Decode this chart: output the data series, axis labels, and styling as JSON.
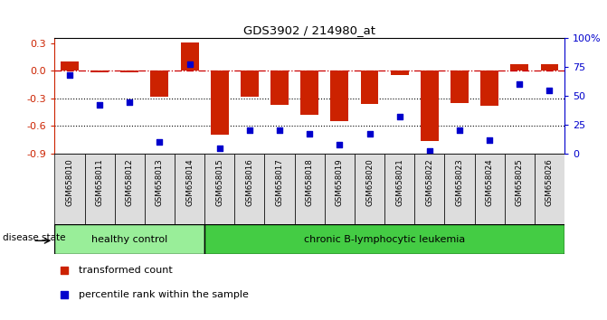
{
  "title": "GDS3902 / 214980_at",
  "samples": [
    "GSM658010",
    "GSM658011",
    "GSM658012",
    "GSM658013",
    "GSM658014",
    "GSM658015",
    "GSM658016",
    "GSM658017",
    "GSM658018",
    "GSM658019",
    "GSM658020",
    "GSM658021",
    "GSM658022",
    "GSM658023",
    "GSM658024",
    "GSM658025",
    "GSM658026"
  ],
  "bar_values": [
    0.1,
    -0.02,
    -0.02,
    -0.28,
    0.31,
    -0.69,
    -0.28,
    -0.37,
    -0.48,
    -0.55,
    -0.36,
    -0.05,
    -0.76,
    -0.35,
    -0.38,
    0.07,
    0.07
  ],
  "scatter_values": [
    68,
    42,
    45,
    10,
    78,
    5,
    20,
    20,
    17,
    8,
    17,
    32,
    2,
    20,
    12,
    60,
    55
  ],
  "ylim_left": [
    -0.9,
    0.35
  ],
  "ylim_right": [
    0,
    100
  ],
  "yticks_left": [
    -0.9,
    -0.6,
    -0.3,
    0.0,
    0.3
  ],
  "yticks_right": [
    0,
    25,
    50,
    75,
    100
  ],
  "ytick_right_labels": [
    "0",
    "25",
    "50",
    "75",
    "100%"
  ],
  "hline_y": 0.0,
  "hline_color": "#cc0000",
  "dotted_lines": [
    -0.3,
    -0.6
  ],
  "bar_color": "#cc2200",
  "scatter_color": "#0000cc",
  "healthy_control_count": 5,
  "group_labels": [
    "healthy control",
    "chronic B-lymphocytic leukemia"
  ],
  "group_color_healthy": "#99ee99",
  "group_color_disease": "#44cc44",
  "disease_state_label": "disease state",
  "legend_items": [
    "transformed count",
    "percentile rank within the sample"
  ],
  "background_color": "#ffffff"
}
